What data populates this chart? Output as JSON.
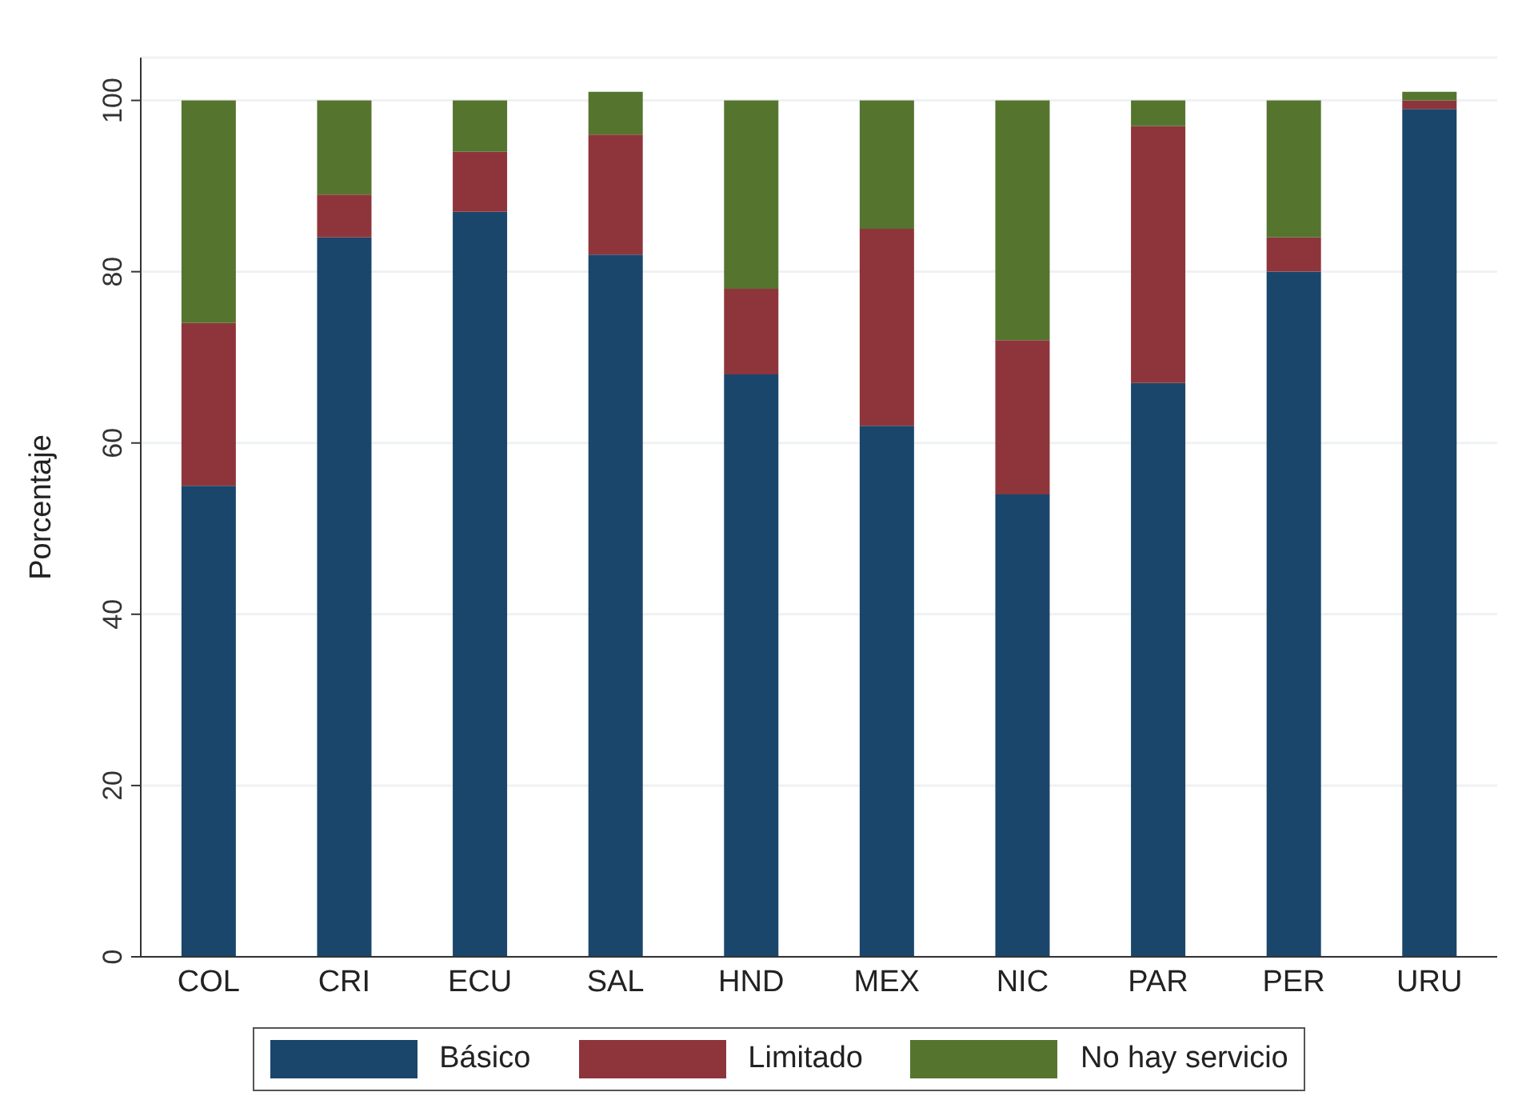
{
  "chart_data": {
    "type": "bar",
    "stacked": true,
    "ylabel": "Porcentaje",
    "categories": [
      "COL",
      "CRI",
      "ECU",
      "SAL",
      "HND",
      "MEX",
      "NIC",
      "PAR",
      "PER",
      "URU"
    ],
    "series": [
      {
        "name": "Básico",
        "color": "#1a466c",
        "values": [
          55,
          84,
          87,
          82,
          68,
          62,
          54,
          67,
          80,
          99
        ]
      },
      {
        "name": "Limitado",
        "color": "#8e353b",
        "values": [
          19,
          5,
          7,
          14,
          10,
          23,
          18,
          30,
          4,
          1
        ]
      },
      {
        "name": "No hay servicio",
        "color": "#55752f",
        "values": [
          26,
          11,
          6,
          5,
          22,
          15,
          28,
          3,
          16,
          1
        ]
      }
    ],
    "ylim": [
      0,
      105
    ],
    "yticks": [
      0,
      20,
      40,
      60,
      80,
      100
    ],
    "grid": "y",
    "legend": "bottom"
  }
}
